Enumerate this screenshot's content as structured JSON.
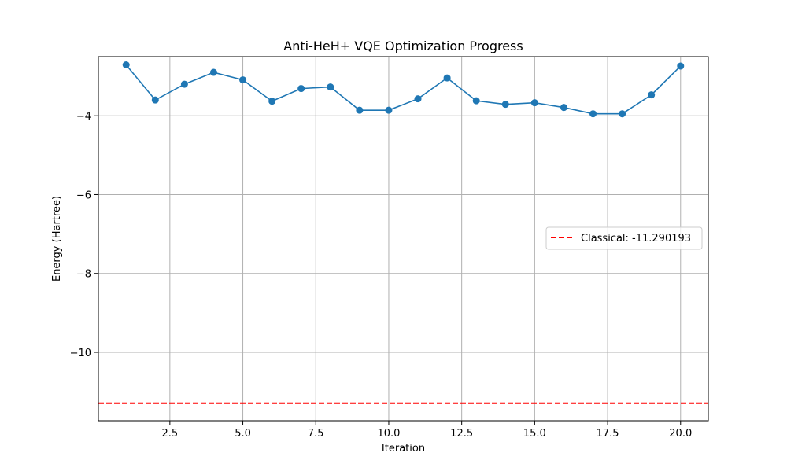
{
  "chart_data": {
    "type": "line",
    "title": "Anti-HeH+ VQE Optimization Progress",
    "xlabel": "Iteration",
    "ylabel": "Energy (Hartree)",
    "xlim": [
      0.05,
      20.95
    ],
    "ylim": [
      -11.735,
      -2.5
    ],
    "xticks": [
      2.5,
      5.0,
      7.5,
      10.0,
      12.5,
      15.0,
      17.5,
      20.0
    ],
    "xtick_labels": [
      "2.5",
      "5.0",
      "7.5",
      "10.0",
      "12.5",
      "15.0",
      "17.5",
      "20.0"
    ],
    "yticks": [
      -10,
      -8,
      -6,
      -4
    ],
    "ytick_labels": [
      "−10",
      "−8",
      "−6",
      "−4"
    ],
    "grid": true,
    "legend_position": "center-right",
    "series": [
      {
        "x": [
          1,
          2,
          3,
          4,
          5,
          6,
          7,
          8,
          9,
          10,
          11,
          12,
          13,
          14,
          15,
          16,
          17,
          18,
          19,
          20
        ],
        "y": [
          -2.71,
          -3.6,
          -3.2,
          -2.9,
          -3.09,
          -3.63,
          -3.31,
          -3.27,
          -3.86,
          -3.86,
          -3.57,
          -3.04,
          -3.62,
          -3.71,
          -3.67,
          -3.79,
          -3.95,
          -3.95,
          -3.47,
          -2.74
        ],
        "color": "#1f77b4",
        "marker": "circle"
      }
    ],
    "reference_line": {
      "name": "Classical: -11.290193",
      "y": -11.290193,
      "color": "#ff0000",
      "style": "dashed"
    }
  }
}
